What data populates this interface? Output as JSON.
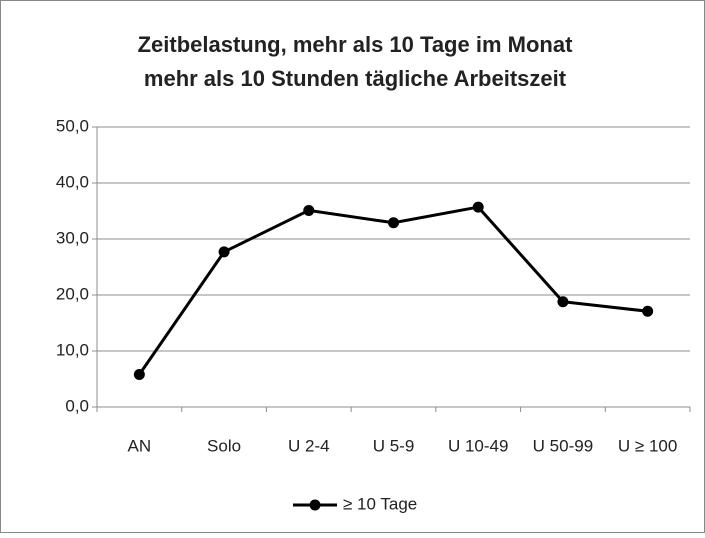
{
  "chart_data": {
    "type": "line",
    "title": [
      "Zeitbelastung, mehr als 10 Tage im Monat",
      "mehr als 10 Stunden tägliche Arbeitszeit"
    ],
    "categories": [
      "AN",
      "Solo",
      "U 2-4",
      "U 5-9",
      "U 10-49",
      "U 50-99",
      "U ≥ 100"
    ],
    "series": [
      {
        "name": "≥ 10 Tage",
        "color": "#000000",
        "values": [
          5.8,
          27.7,
          35.1,
          32.9,
          35.7,
          18.8,
          17.1
        ]
      }
    ],
    "ylim": [
      0,
      50
    ],
    "yticks": [
      {
        "value": 0,
        "label": "0,0"
      },
      {
        "value": 10,
        "label": "10,0"
      },
      {
        "value": 20,
        "label": "20,0"
      },
      {
        "value": 30,
        "label": "30,0"
      },
      {
        "value": 40,
        "label": "40,0"
      },
      {
        "value": 50,
        "label": "50,0"
      }
    ],
    "grid": true,
    "legend": "bottom"
  }
}
